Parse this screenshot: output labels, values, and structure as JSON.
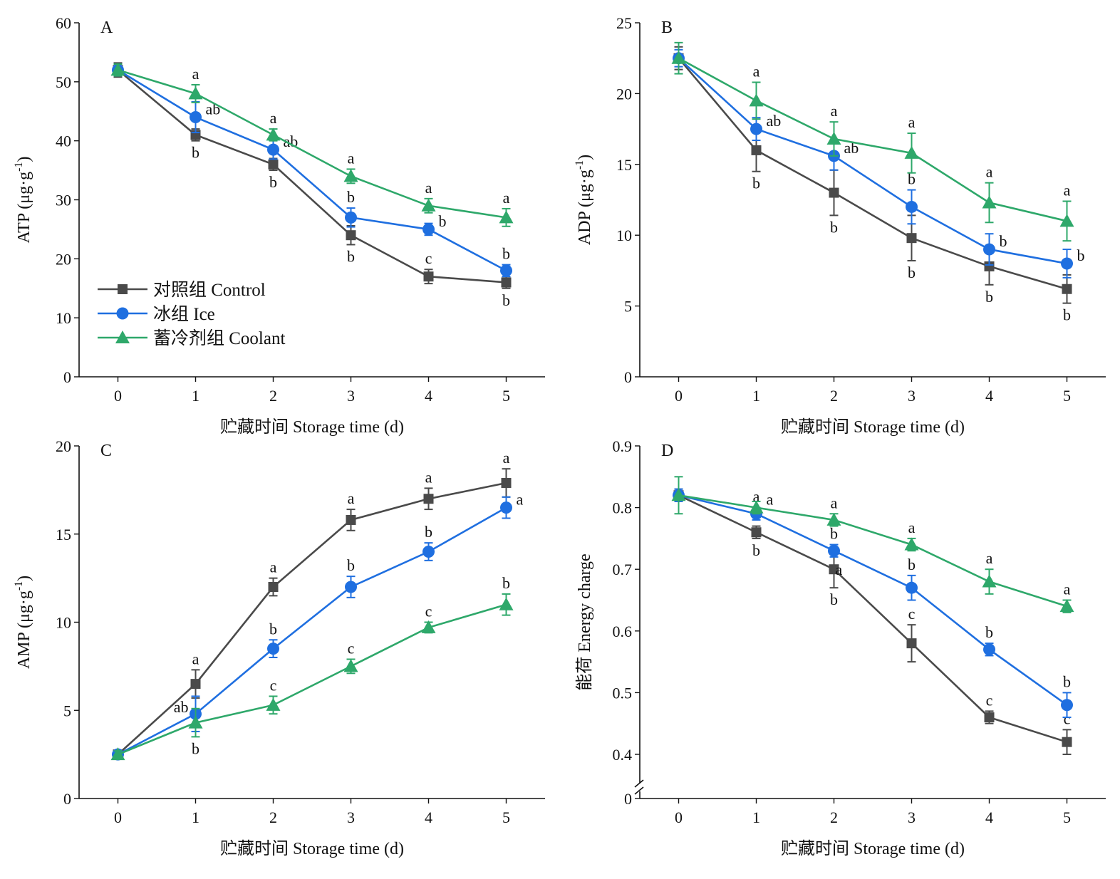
{
  "legend": {
    "items": [
      {
        "label": "对照组 Control",
        "color": "#4a4a4a",
        "marker": "square"
      },
      {
        "label": "冰组 Ice",
        "color": "#1f6fe0",
        "marker": "circle"
      },
      {
        "label": "蓄冷剂组 Coolant",
        "color": "#2ea86a",
        "marker": "triangle"
      }
    ],
    "position": "bottom-left of panel A"
  },
  "colors": {
    "control": "#4a4a4a",
    "ice": "#1f6fe0",
    "coolant": "#2ea86a"
  },
  "chart_data": [
    {
      "id": "A",
      "type": "line",
      "panel_label": "A",
      "xlabel": "贮藏时间 Storage time (d)",
      "ylabel_main": "ATP (μg·g",
      "ylabel_sup": "-1",
      "ylabel_tail": ")",
      "x": [
        0,
        1,
        2,
        3,
        4,
        5
      ],
      "xlim": [
        -0.5,
        5.5
      ],
      "ylim": [
        0,
        60
      ],
      "yticks": [
        0,
        10,
        20,
        30,
        40,
        50,
        60
      ],
      "ytick_labels": [
        "0",
        "10",
        "20",
        "30",
        "40",
        "50",
        "60"
      ],
      "axis_break": false,
      "series": [
        {
          "key": "control",
          "values": [
            52,
            41,
            36,
            24,
            17,
            16
          ],
          "errors": [
            1.2,
            1.0,
            1.0,
            1.6,
            1.2,
            1.0
          ],
          "labels": [
            "",
            "b",
            "b",
            "b",
            "c",
            "b"
          ],
          "label_pos": [
            "",
            "below",
            "below",
            "below",
            "above",
            "below"
          ]
        },
        {
          "key": "ice",
          "values": [
            52,
            44,
            38.5,
            27,
            25,
            18
          ],
          "errors": [
            1.0,
            2.6,
            1.6,
            1.6,
            1.0,
            1.0
          ],
          "labels": [
            "",
            "ab",
            "ab",
            "b",
            "b",
            "b"
          ],
          "label_pos": [
            "",
            "right",
            "right",
            "above",
            "right",
            "above"
          ]
        },
        {
          "key": "coolant",
          "values": [
            52,
            48,
            41,
            34,
            29,
            27
          ],
          "errors": [
            1.0,
            1.5,
            1.0,
            1.2,
            1.2,
            1.5
          ],
          "labels": [
            "",
            "a",
            "a",
            "a",
            "a",
            "a"
          ],
          "label_pos": [
            "",
            "above",
            "above",
            "above",
            "above",
            "above"
          ]
        }
      ]
    },
    {
      "id": "B",
      "type": "line",
      "panel_label": "B",
      "xlabel": "贮藏时间 Storage time (d)",
      "ylabel_main": "ADP (μg·g",
      "ylabel_sup": "-1",
      "ylabel_tail": ")",
      "x": [
        0,
        1,
        2,
        3,
        4,
        5
      ],
      "xlim": [
        -0.5,
        5.5
      ],
      "ylim": [
        0,
        25
      ],
      "yticks": [
        0,
        5,
        10,
        15,
        20,
        25
      ],
      "ytick_labels": [
        "0",
        "5",
        "10",
        "15",
        "20",
        "25"
      ],
      "axis_break": false,
      "series": [
        {
          "key": "control",
          "values": [
            22.5,
            16,
            13,
            9.8,
            7.8,
            6.2
          ],
          "errors": [
            0.8,
            1.5,
            1.6,
            1.6,
            1.3,
            1.0
          ],
          "labels": [
            "",
            "b",
            "b",
            "b",
            "b",
            "b"
          ],
          "label_pos": [
            "",
            "below",
            "below",
            "below",
            "below",
            "below"
          ]
        },
        {
          "key": "ice",
          "values": [
            22.5,
            17.5,
            15.6,
            12,
            9,
            8
          ],
          "errors": [
            0.6,
            0.8,
            1.0,
            1.2,
            1.1,
            1.0
          ],
          "labels": [
            "",
            "ab",
            "ab",
            "b",
            "b",
            "b"
          ],
          "label_pos": [
            "",
            "right",
            "right",
            "above",
            "right",
            "right"
          ]
        },
        {
          "key": "coolant",
          "values": [
            22.5,
            19.5,
            16.8,
            15.8,
            12.3,
            11
          ],
          "errors": [
            1.1,
            1.3,
            1.2,
            1.4,
            1.4,
            1.4
          ],
          "labels": [
            "",
            "a",
            "a",
            "a",
            "a",
            "a"
          ],
          "label_pos": [
            "",
            "above",
            "above",
            "above",
            "above",
            "above"
          ]
        }
      ]
    },
    {
      "id": "C",
      "type": "line",
      "panel_label": "C",
      "xlabel": "贮藏时间 Storage time (d)",
      "ylabel_main": "AMP (μg·g",
      "ylabel_sup": "-1",
      "ylabel_tail": ")",
      "x": [
        0,
        1,
        2,
        3,
        4,
        5
      ],
      "xlim": [
        -0.5,
        5.5
      ],
      "ylim": [
        0,
        20
      ],
      "yticks": [
        0,
        5,
        10,
        15,
        20
      ],
      "ytick_labels": [
        "0",
        "5",
        "10",
        "15",
        "20"
      ],
      "axis_break": false,
      "series": [
        {
          "key": "control",
          "values": [
            2.5,
            6.5,
            12,
            15.8,
            17,
            17.9
          ],
          "errors": [
            0.2,
            0.8,
            0.5,
            0.6,
            0.6,
            0.8
          ],
          "labels": [
            "",
            "a",
            "a",
            "a",
            "a",
            "a"
          ],
          "label_pos": [
            "",
            "above",
            "above",
            "above",
            "above",
            "above"
          ]
        },
        {
          "key": "ice",
          "values": [
            2.5,
            4.8,
            8.5,
            12,
            14,
            16.5
          ],
          "errors": [
            0.2,
            1.0,
            0.5,
            0.6,
            0.5,
            0.6
          ],
          "labels": [
            "",
            "ab",
            "b",
            "b",
            "b",
            "a"
          ],
          "label_pos": [
            "",
            "left",
            "above",
            "above",
            "above",
            "right"
          ]
        },
        {
          "key": "coolant",
          "values": [
            2.5,
            4.3,
            5.3,
            7.5,
            9.7,
            11
          ],
          "errors": [
            0.2,
            0.8,
            0.5,
            0.4,
            0.3,
            0.6
          ],
          "labels": [
            "",
            "b",
            "c",
            "c",
            "c",
            "b"
          ],
          "label_pos": [
            "",
            "below",
            "above",
            "above",
            "above",
            "above"
          ]
        }
      ]
    },
    {
      "id": "D",
      "type": "line",
      "panel_label": "D",
      "xlabel": "贮藏时间 Storage time (d)",
      "ylabel_main": "能荷 Energy charge",
      "ylabel_sup": "",
      "ylabel_tail": "",
      "x": [
        0,
        1,
        2,
        3,
        4,
        5
      ],
      "xlim": [
        -0.5,
        5.5
      ],
      "ylim": [
        0.35,
        0.9
      ],
      "yticks": [
        0.4,
        0.5,
        0.6,
        0.7,
        0.8,
        0.9
      ],
      "ytick_labels": [
        "0.4",
        "0.5",
        "0.6",
        "0.7",
        "0.8",
        "0.9"
      ],
      "axis_break": true,
      "axis_break_label": "0",
      "series": [
        {
          "key": "control",
          "values": [
            0.82,
            0.76,
            0.7,
            0.58,
            0.46,
            0.42
          ],
          "errors": [
            0.01,
            0.01,
            0.03,
            0.03,
            0.01,
            0.02
          ],
          "labels": [
            "",
            "b",
            "b",
            "c",
            "c",
            "c"
          ],
          "label_pos": [
            "",
            "below",
            "below",
            "above",
            "above",
            "above"
          ]
        },
        {
          "key": "ice",
          "values": [
            0.82,
            0.79,
            0.73,
            0.67,
            0.57,
            0.48
          ],
          "errors": [
            0.01,
            0.01,
            0.01,
            0.02,
            0.01,
            0.02
          ],
          "labels": [
            "",
            "a",
            "b",
            "b",
            "b",
            "b"
          ],
          "label_pos": [
            "",
            "above",
            "above",
            "above",
            "above",
            "above"
          ]
        },
        {
          "key": "coolant",
          "values": [
            0.82,
            0.8,
            0.78,
            0.74,
            0.68,
            0.64
          ],
          "errors": [
            0.03,
            0.01,
            0.01,
            0.01,
            0.02,
            0.01
          ],
          "labels": [
            "",
            "a",
            "a",
            "a",
            "a",
            "a"
          ],
          "label_pos": [
            "",
            "right",
            "above",
            "above",
            "above",
            "above"
          ]
        }
      ],
      "extra_labels": [
        {
          "x": 2,
          "value": 0.7,
          "text": "a",
          "pos": "right"
        }
      ]
    }
  ]
}
